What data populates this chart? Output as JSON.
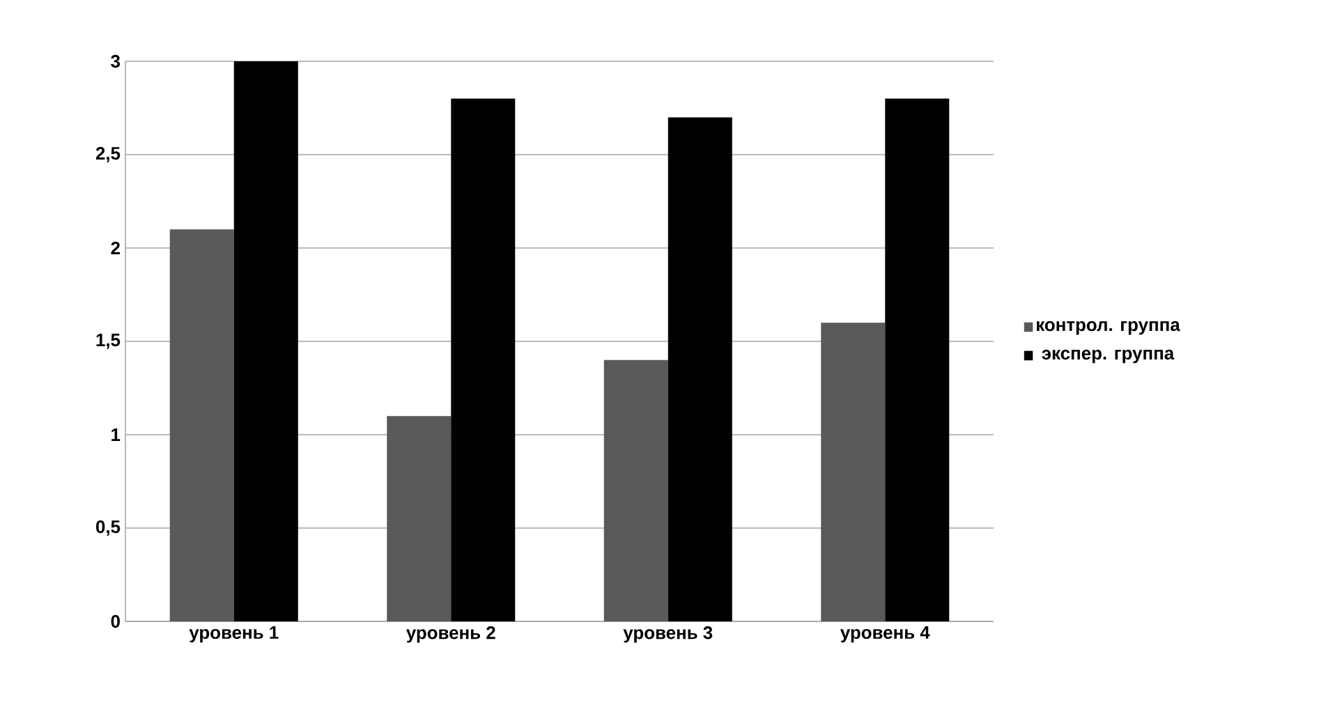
{
  "chart_data": {
    "type": "bar",
    "categories": [
      "уровень 1",
      "уровень 2",
      "уровень 3",
      "уровень 4"
    ],
    "series": [
      {
        "name": "контрол. группа",
        "color": "#595959",
        "values": [
          2.1,
          1.1,
          1.4,
          1.6
        ]
      },
      {
        "name": "экспер. группа",
        "color": "#000000",
        "values": [
          3,
          2.8,
          2.7,
          2.8
        ]
      }
    ],
    "ylim": [
      0,
      3
    ],
    "yticks": [
      0,
      {
        "value": 0.5,
        "label": "0,5"
      },
      1,
      {
        "value": 1.5,
        "label": "1,5"
      },
      2,
      {
        "value": 2.5,
        "label": "2,5"
      },
      3
    ],
    "grid": "y",
    "legend": "right"
  }
}
